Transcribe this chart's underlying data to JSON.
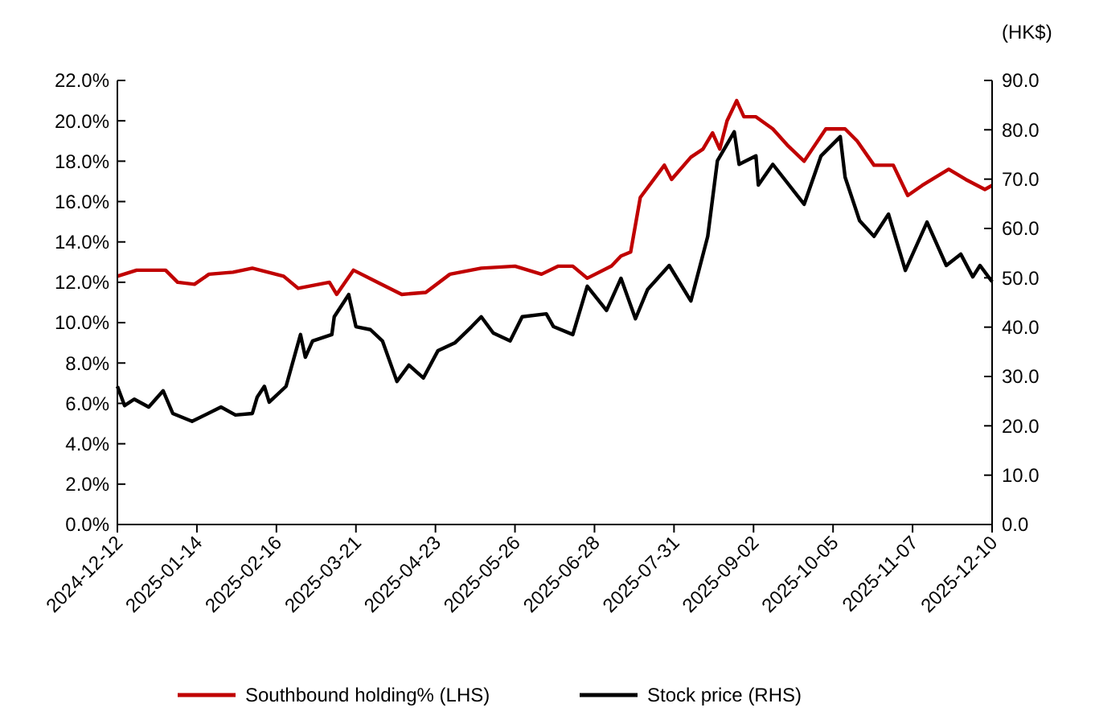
{
  "chart_data": {
    "type": "line",
    "y2label": "(HK$)",
    "xlim": [
      "2024-12-12",
      "2025-12-10"
    ],
    "xticks": [
      "2024-12-12",
      "2025-01-14",
      "2025-02-16",
      "2025-03-21",
      "2025-04-23",
      "2025-05-26",
      "2025-06-28",
      "2025-07-31",
      "2025-09-02",
      "2025-10-05",
      "2025-11-07",
      "2025-12-10"
    ],
    "ylim": [
      0,
      22
    ],
    "yticks": [
      {
        "value": 0,
        "label": "0.0%"
      },
      {
        "value": 2,
        "label": "2.0%"
      },
      {
        "value": 4,
        "label": "4.0%"
      },
      {
        "value": 6,
        "label": "6.0%"
      },
      {
        "value": 8,
        "label": "8.0%"
      },
      {
        "value": 10,
        "label": "10.0%"
      },
      {
        "value": 12,
        "label": "12.0%"
      },
      {
        "value": 14,
        "label": "14.0%"
      },
      {
        "value": 16,
        "label": "16.0%"
      },
      {
        "value": 18,
        "label": "18.0%"
      },
      {
        "value": 20,
        "label": "20.0%"
      },
      {
        "value": 22,
        "label": "22.0%"
      }
    ],
    "y2lim": [
      0,
      90
    ],
    "y2ticks": [
      {
        "value": 0,
        "label": "0.0"
      },
      {
        "value": 10,
        "label": "10.0"
      },
      {
        "value": 20,
        "label": "20.0"
      },
      {
        "value": 30,
        "label": "30.0"
      },
      {
        "value": 40,
        "label": "40.0"
      },
      {
        "value": 50,
        "label": "50.0"
      },
      {
        "value": 60,
        "label": "60.0"
      },
      {
        "value": 70,
        "label": "70.0"
      },
      {
        "value": 80,
        "label": "80.0"
      },
      {
        "value": 90,
        "label": "90.0"
      }
    ],
    "grid": false,
    "legend": "bottom",
    "marker": "none",
    "line_style": "solid",
    "series": [
      {
        "name": "Southbound holding% (LHS)",
        "color": "#c00000",
        "x": [
          "2024-12-12",
          "2024-12-20",
          "2025-01-01",
          "2025-01-06",
          "2025-01-13",
          "2025-01-19",
          "2025-01-29",
          "2025-02-06",
          "2025-02-19",
          "2025-02-25",
          "2025-03-10",
          "2025-03-13",
          "2025-03-20",
          "2025-03-30",
          "2025-04-09",
          "2025-04-19",
          "2025-04-29",
          "2025-05-12",
          "2025-05-26",
          "2025-06-06",
          "2025-06-13",
          "2025-06-19",
          "2025-06-25",
          "2025-07-05",
          "2025-07-09",
          "2025-07-13",
          "2025-07-17",
          "2025-07-27",
          "2025-07-30",
          "2025-08-07",
          "2025-08-12",
          "2025-08-16",
          "2025-08-19",
          "2025-08-22",
          "2025-08-26",
          "2025-08-29",
          "2025-09-03",
          "2025-09-10",
          "2025-09-16",
          "2025-09-23",
          "2025-10-02",
          "2025-10-10",
          "2025-10-15",
          "2025-10-22",
          "2025-10-30",
          "2025-11-05",
          "2025-11-11",
          "2025-11-22",
          "2025-11-29",
          "2025-12-07",
          "2025-12-10"
        ],
        "values": [
          12.3,
          12.6,
          12.6,
          12.0,
          11.9,
          12.4,
          12.5,
          12.7,
          12.3,
          11.7,
          12.0,
          11.4,
          12.6,
          12.0,
          11.4,
          11.5,
          12.4,
          12.7,
          12.8,
          12.4,
          12.8,
          12.8,
          12.2,
          12.8,
          13.3,
          13.5,
          16.2,
          17.8,
          17.1,
          18.2,
          18.6,
          19.4,
          18.6,
          20.0,
          21.0,
          20.2,
          20.2,
          19.6,
          18.8,
          18.0,
          19.6,
          19.6,
          19.0,
          17.8,
          17.8,
          16.3,
          16.8,
          17.6,
          17.1,
          16.6,
          16.8
        ]
      },
      {
        "name": "Stock price (RHS)",
        "color": "#000000",
        "axis": "y2",
        "x": [
          "2024-12-12",
          "2024-12-15",
          "2024-12-19",
          "2024-12-25",
          "2024-12-31",
          "2025-01-04",
          "2025-01-12",
          "2025-01-24",
          "2025-01-30",
          "2025-02-06",
          "2025-02-08",
          "2025-02-11",
          "2025-02-13",
          "2025-02-20",
          "2025-02-26",
          "2025-02-28",
          "2025-03-03",
          "2025-03-11",
          "2025-03-12",
          "2025-03-18",
          "2025-03-21",
          "2025-03-27",
          "2025-04-01",
          "2025-04-07",
          "2025-04-12",
          "2025-04-18",
          "2025-04-24",
          "2025-05-01",
          "2025-05-08",
          "2025-05-12",
          "2025-05-17",
          "2025-05-24",
          "2025-05-29",
          "2025-06-08",
          "2025-06-11",
          "2025-06-19",
          "2025-06-25",
          "2025-07-03",
          "2025-07-09",
          "2025-07-15",
          "2025-07-20",
          "2025-07-29",
          "2025-08-07",
          "2025-08-14",
          "2025-08-18",
          "2025-08-25",
          "2025-08-27",
          "2025-09-03",
          "2025-09-04",
          "2025-09-10",
          "2025-09-23",
          "2025-09-30",
          "2025-10-08",
          "2025-10-10",
          "2025-10-16",
          "2025-10-22",
          "2025-10-28",
          "2025-11-04",
          "2025-11-13",
          "2025-11-21",
          "2025-11-27",
          "2025-12-02",
          "2025-12-05",
          "2025-12-10"
        ],
        "values": [
          28.0,
          24.1,
          25.4,
          23.8,
          27.1,
          22.5,
          20.9,
          23.8,
          22.2,
          22.5,
          25.8,
          28.0,
          24.8,
          28.0,
          38.5,
          33.9,
          37.2,
          38.5,
          42.1,
          46.6,
          40.1,
          39.5,
          37.2,
          29.0,
          32.3,
          29.7,
          35.2,
          36.8,
          40.1,
          42.1,
          38.8,
          37.2,
          42.1,
          42.7,
          40.1,
          38.5,
          48.3,
          43.4,
          49.9,
          41.7,
          47.6,
          52.5,
          45.3,
          58.4,
          73.7,
          79.6,
          73.0,
          74.7,
          68.8,
          73.0,
          64.9,
          74.7,
          78.6,
          70.4,
          61.6,
          58.4,
          62.9,
          51.5,
          61.3,
          52.5,
          54.8,
          50.2,
          52.5,
          49.2
        ]
      }
    ]
  }
}
